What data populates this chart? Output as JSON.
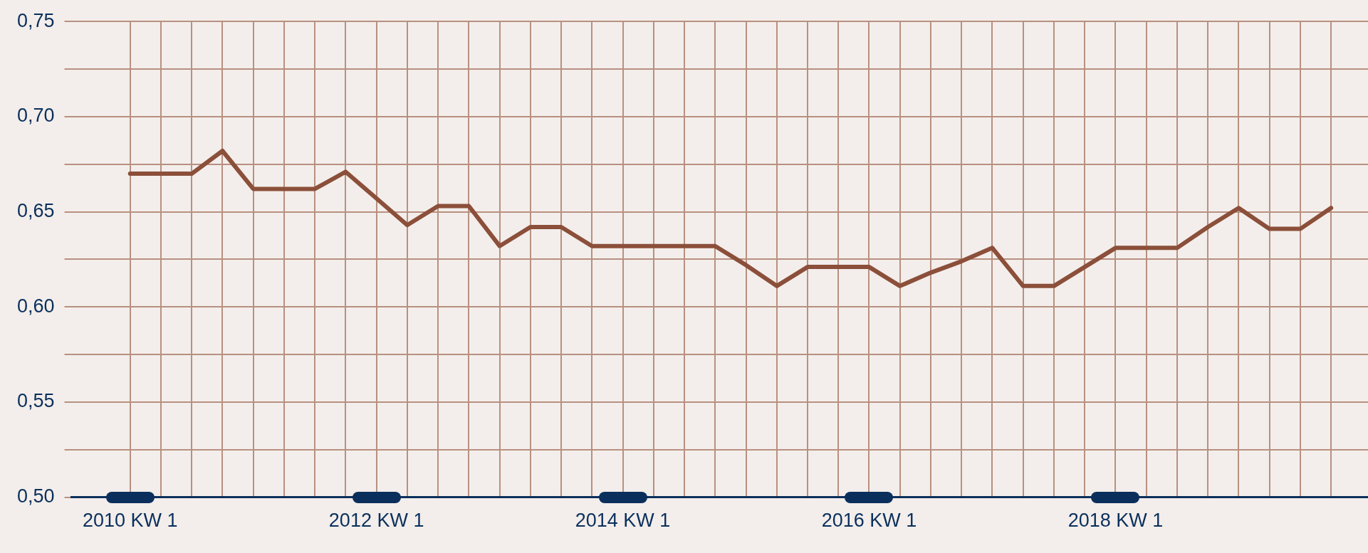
{
  "chart_data": {
    "type": "line",
    "categories": [
      "2010 KW 1",
      null,
      null,
      null,
      null,
      null,
      null,
      null,
      "2012 KW 1",
      null,
      null,
      null,
      null,
      null,
      null,
      null,
      "2014 KW 1",
      null,
      null,
      null,
      null,
      null,
      null,
      null,
      "2016 KW 1",
      null,
      null,
      null,
      null,
      null,
      null,
      null,
      "2018 KW 1",
      null,
      null,
      null,
      null,
      null,
      null,
      null
    ],
    "series": [
      {
        "color": "#8b4f3a",
        "values": [
          0.67,
          0.67,
          0.67,
          0.682,
          0.662,
          0.662,
          0.662,
          0.671,
          0.657,
          0.643,
          0.653,
          0.653,
          0.632,
          0.642,
          0.642,
          0.632,
          0.632,
          0.632,
          0.632,
          0.632,
          0.622,
          0.611,
          0.621,
          0.621,
          0.621,
          0.611,
          0.618,
          0.624,
          0.631,
          0.611,
          0.611,
          0.621,
          0.631,
          0.631,
          0.631,
          0.642,
          0.652,
          0.641,
          0.641,
          0.652
        ]
      }
    ],
    "ylim": [
      0.5,
      0.75
    ],
    "yticks": [
      {
        "value": 0.5,
        "label": "0,50"
      },
      {
        "value": 0.525,
        "label": null
      },
      {
        "value": 0.55,
        "label": "0,55"
      },
      {
        "value": 0.575,
        "label": null
      },
      {
        "value": 0.6,
        "label": "0,60"
      },
      {
        "value": 0.625,
        "label": null
      },
      {
        "value": 0.65,
        "label": "0,65"
      },
      {
        "value": 0.675,
        "label": null
      },
      {
        "value": 0.7,
        "label": "0,70"
      },
      {
        "value": 0.725,
        "label": null
      },
      {
        "value": 0.75,
        "label": "0,75"
      }
    ],
    "grid": true,
    "marker": "none",
    "line_style": "solid",
    "legend": false
  }
}
